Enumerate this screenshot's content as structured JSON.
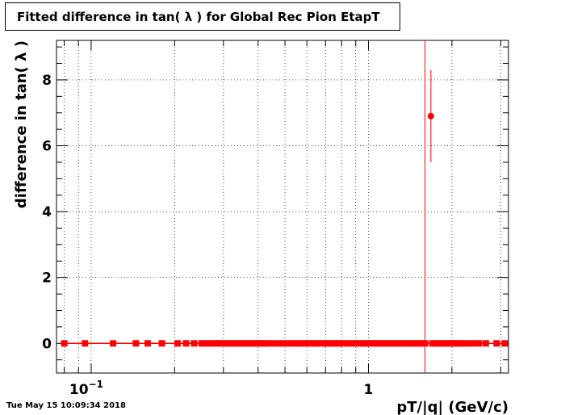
{
  "chart_data": {
    "type": "scatter",
    "title": "Fitted difference in tan( λ ) for Global Rec Pion EtapT",
    "xlabel": "pT/|q| (GeV/c)",
    "ylabel": "difference in tan( λ )",
    "x_scale": "log",
    "xlim": [
      0.075,
      3.2
    ],
    "ylim": [
      -0.9,
      9.2
    ],
    "x_tick_labels": [
      {
        "value": 0.1,
        "base": "10",
        "exp": "−1"
      },
      {
        "value": 1,
        "base": "1",
        "exp": ""
      }
    ],
    "y_ticks": [
      0,
      2,
      4,
      6,
      8
    ],
    "grid": true,
    "color": "#ff0000",
    "vertical_line_x": 1.6,
    "outlier": {
      "x": 1.68,
      "y": 6.9,
      "y_err_low": 1.4,
      "y_err_high": 1.4
    },
    "series": [
      {
        "values_x": [
          0.08,
          0.095,
          0.12,
          0.145,
          0.16,
          0.18,
          0.205,
          0.22,
          0.235,
          0.25,
          0.26,
          0.27,
          0.28,
          0.29,
          0.3,
          0.31,
          0.32,
          0.33,
          0.34,
          0.35,
          0.36,
          0.37,
          0.38,
          0.39,
          0.4,
          0.41,
          0.42,
          0.43,
          0.45,
          0.47,
          0.49,
          0.51,
          0.53,
          0.55,
          0.57,
          0.59,
          0.61,
          0.63,
          0.65,
          0.67,
          0.69,
          0.71,
          0.73,
          0.75,
          0.77,
          0.79,
          0.81,
          0.84,
          0.87,
          0.9,
          0.93,
          0.96,
          0.99,
          1.02,
          1.05,
          1.08,
          1.11,
          1.14,
          1.17,
          1.2,
          1.24,
          1.28,
          1.32,
          1.36,
          1.4,
          1.44,
          1.48,
          1.52,
          1.56,
          1.6,
          1.7,
          1.75,
          1.8,
          1.85,
          1.9,
          1.95,
          2.0,
          2.05,
          2.1,
          2.15,
          2.2,
          2.3,
          2.4,
          2.5,
          2.65,
          2.9,
          3.1
        ],
        "y": 0
      }
    ]
  },
  "timestamp": "Tue May 15 10:09:34 2018"
}
